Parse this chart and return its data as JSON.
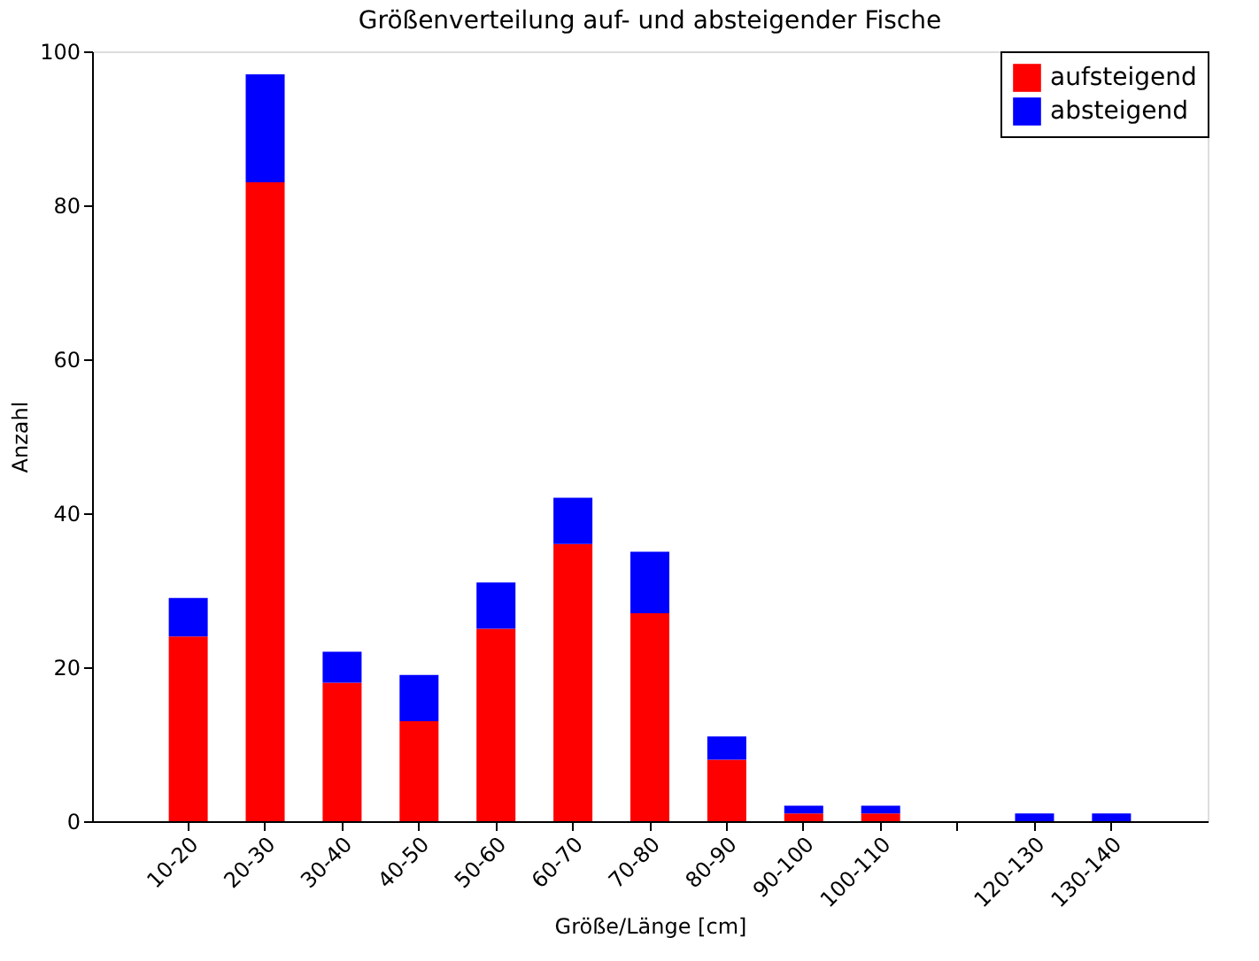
{
  "chart_data": {
    "type": "bar",
    "title": "Größenverteilung auf- und absteigender Fische",
    "xlabel": "Größe/Länge [cm]",
    "ylabel": "Anzahl",
    "categories": [
      "10-20",
      "20-30",
      "30-40",
      "40-50",
      "50-60",
      "60-70",
      "70-80",
      "80-90",
      "90-100",
      "100-110",
      null,
      "120-130",
      "130-140"
    ],
    "stacked": true,
    "series": [
      {
        "name": "aufsteigend",
        "color": "#ff0000",
        "values": [
          24,
          83,
          18,
          13,
          25,
          36,
          27,
          8,
          1,
          1,
          null,
          0,
          0
        ]
      },
      {
        "name": "absteigend",
        "color": "#0000ff",
        "values": [
          5,
          14,
          4,
          6,
          6,
          6,
          8,
          3,
          1,
          1,
          null,
          1,
          1
        ]
      }
    ],
    "ylim": [
      0,
      100
    ],
    "yticks": [
      0,
      20,
      40,
      60,
      80,
      100
    ],
    "grid": false,
    "legend": "top right"
  }
}
